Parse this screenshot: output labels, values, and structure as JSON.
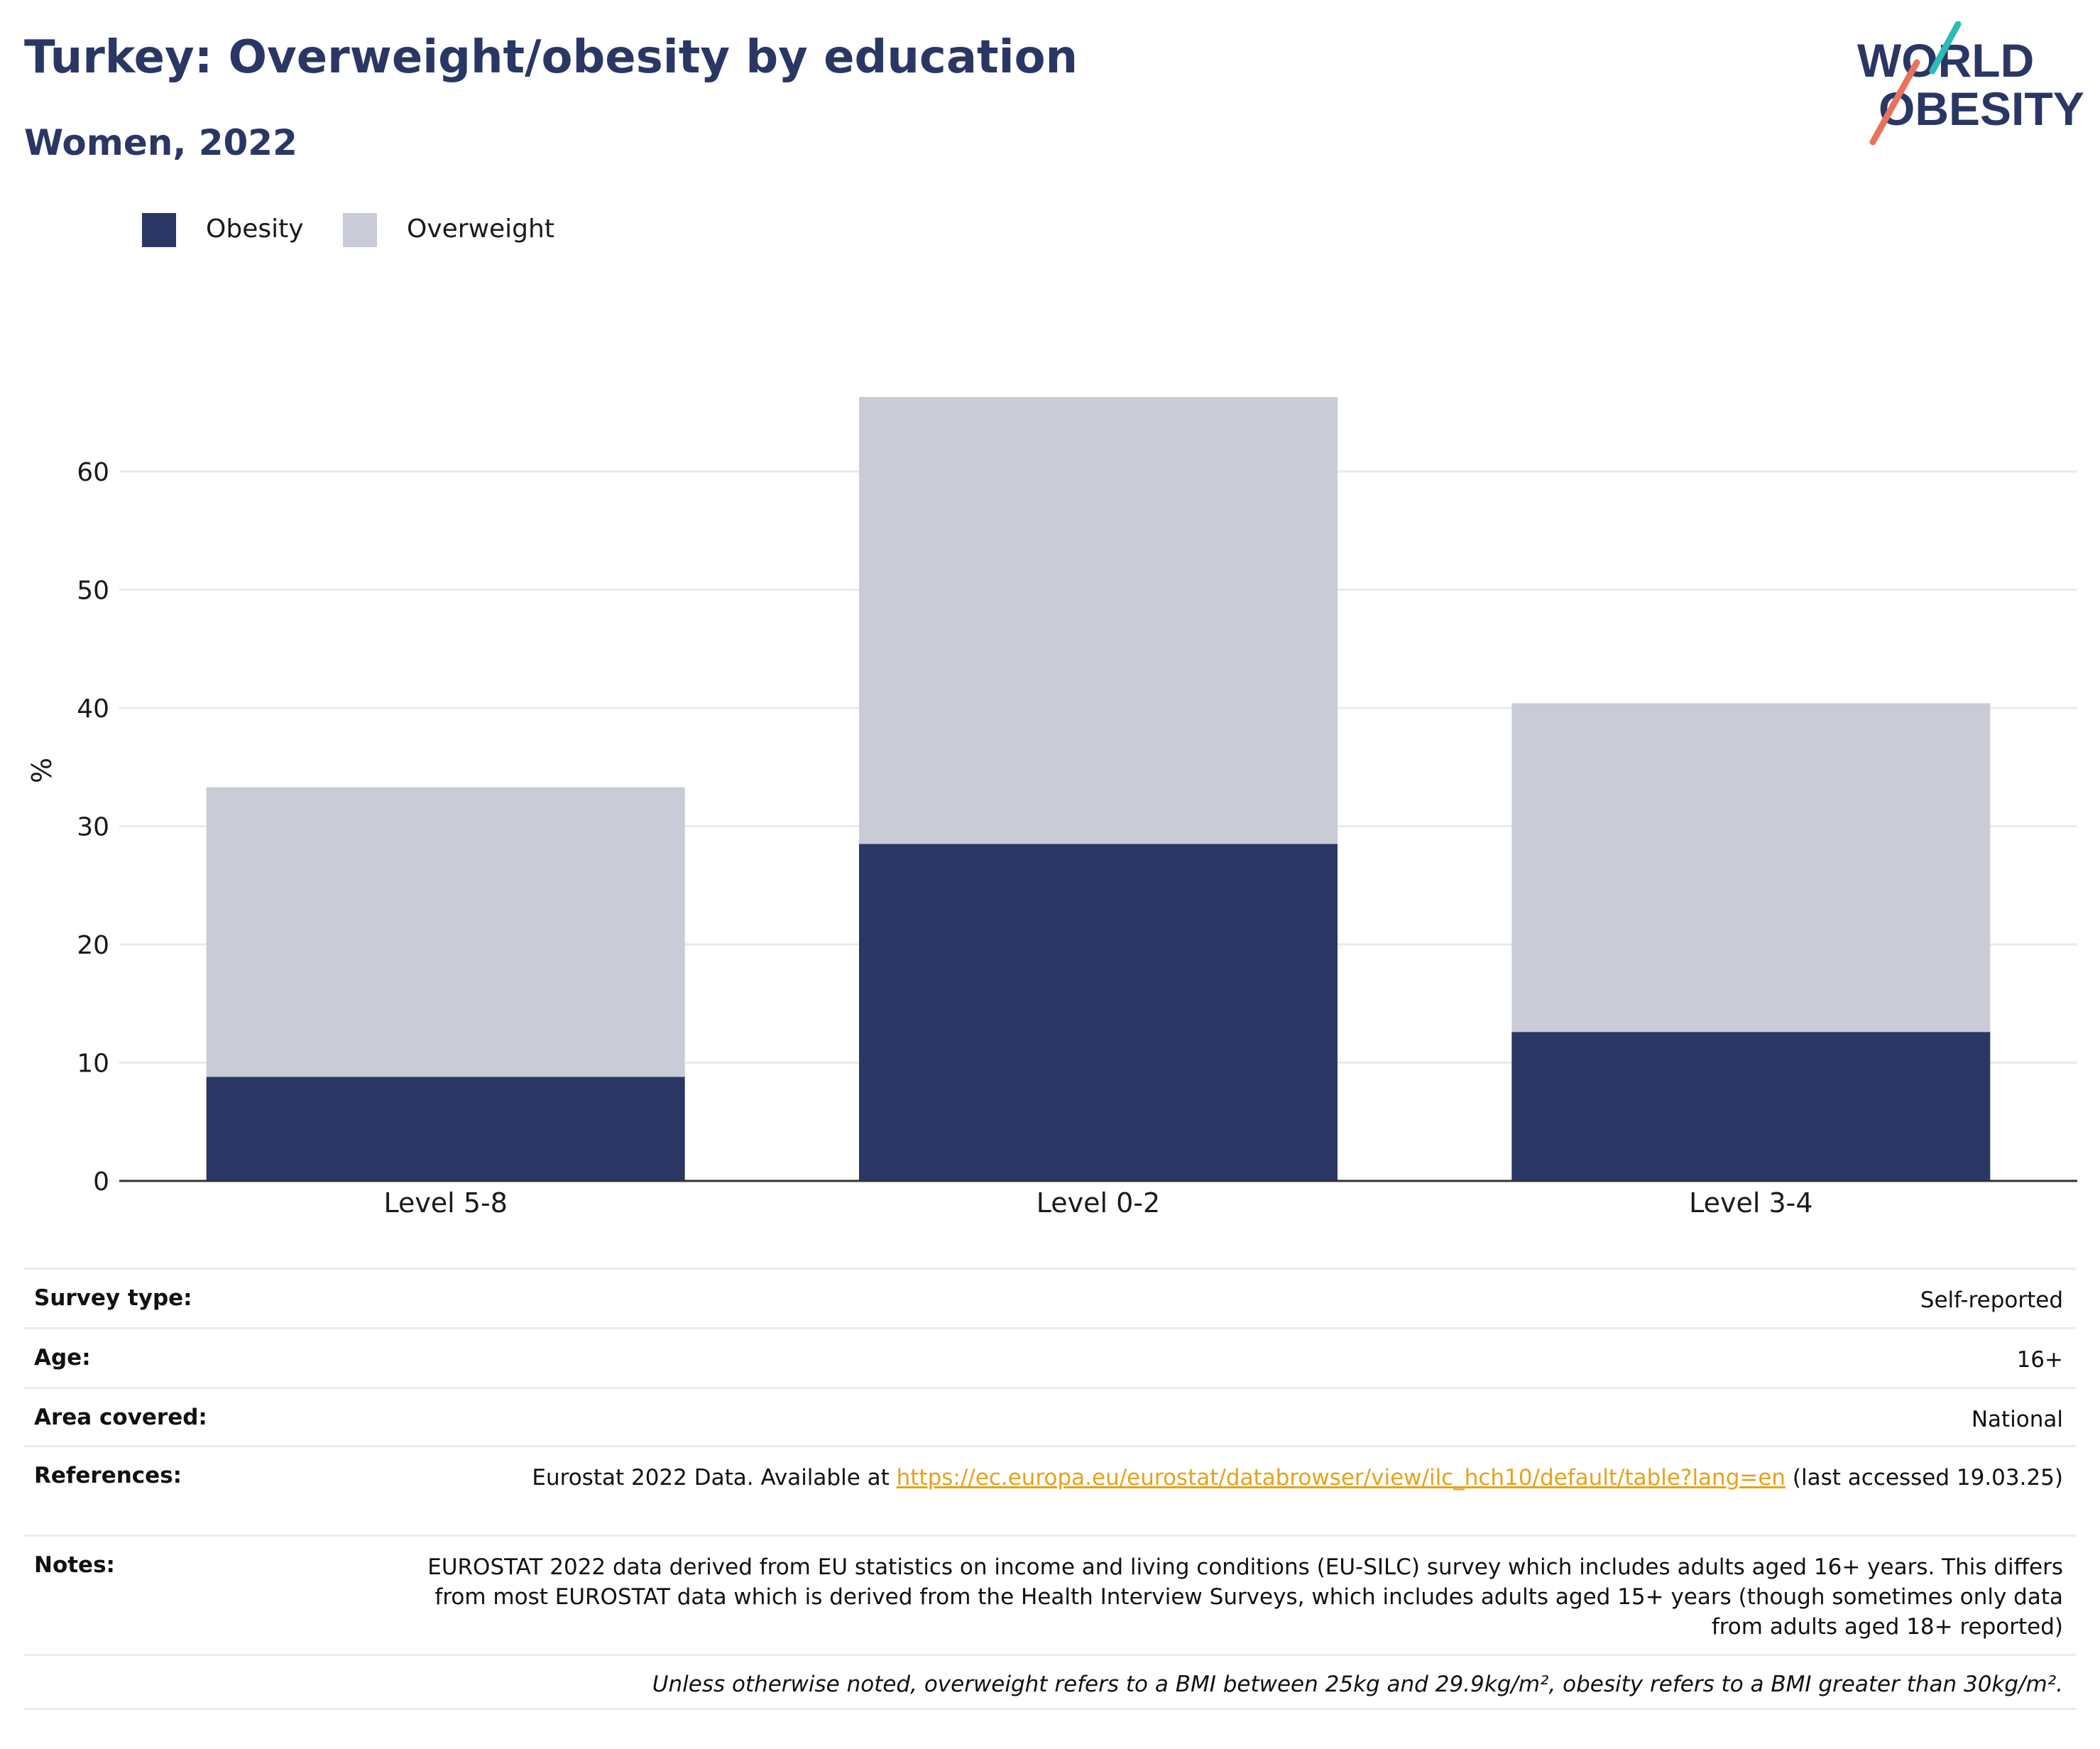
{
  "header": {
    "title": "Turkey: Overweight/obesity by education",
    "subtitle": "Women, 2022"
  },
  "logo": {
    "line1": "WORLD",
    "line2": "OBESITY"
  },
  "colors": {
    "obesity": "#2a3764",
    "overweight": "#c9ccd7",
    "title": "#2a3764",
    "link": "#e5a21c",
    "logo_teal": "#2bbcb3",
    "logo_coral": "#e8725c"
  },
  "legend": [
    {
      "label": "Obesity",
      "color": "#2a3764"
    },
    {
      "label": "Overweight",
      "color": "#c9ccd7"
    }
  ],
  "chart_data": {
    "type": "bar",
    "stacked": true,
    "categories": [
      "Level 5-8",
      "Level 0-2",
      "Level 3-4"
    ],
    "series": [
      {
        "name": "Obesity",
        "values": [
          8.8,
          28.5,
          12.6
        ],
        "color": "#2a3764"
      },
      {
        "name": "Overweight",
        "values": [
          24.5,
          37.8,
          27.8
        ],
        "color": "#c9ccd7"
      }
    ],
    "ylabel": "%",
    "ylim": [
      0,
      70
    ],
    "yticks": [
      0,
      10,
      20,
      30,
      40,
      50,
      60
    ],
    "grid": true,
    "legend_position": "top-left"
  },
  "info": {
    "survey_type": {
      "label": "Survey type:",
      "value": "Self-reported"
    },
    "age": {
      "label": "Age:",
      "value": "16+"
    },
    "area": {
      "label": "Area covered:",
      "value": "National"
    },
    "references": {
      "label": "References:",
      "prefix": "Eurostat 2022 Data. Available at ",
      "link": "https://ec.europa.eu/eurostat/databrowser/view/ilc_hch10/default/table?lang=en",
      "suffix": " (last accessed 19.03.25)"
    },
    "notes": {
      "label": "Notes:",
      "value": "EUROSTAT 2022 data derived from EU statistics on income and living conditions (EU-SILC) survey which includes adults aged 16+ years. This differs from most EUROSTAT data which is derived from the Health Interview Surveys, which includes adults aged 15+ years (though sometimes only data from adults aged 18+ reported)"
    },
    "footnote": "Unless otherwise noted, overweight refers to a BMI between 25kg and 29.9kg/m², obesity refers to a BMI greater than 30kg/m²."
  }
}
